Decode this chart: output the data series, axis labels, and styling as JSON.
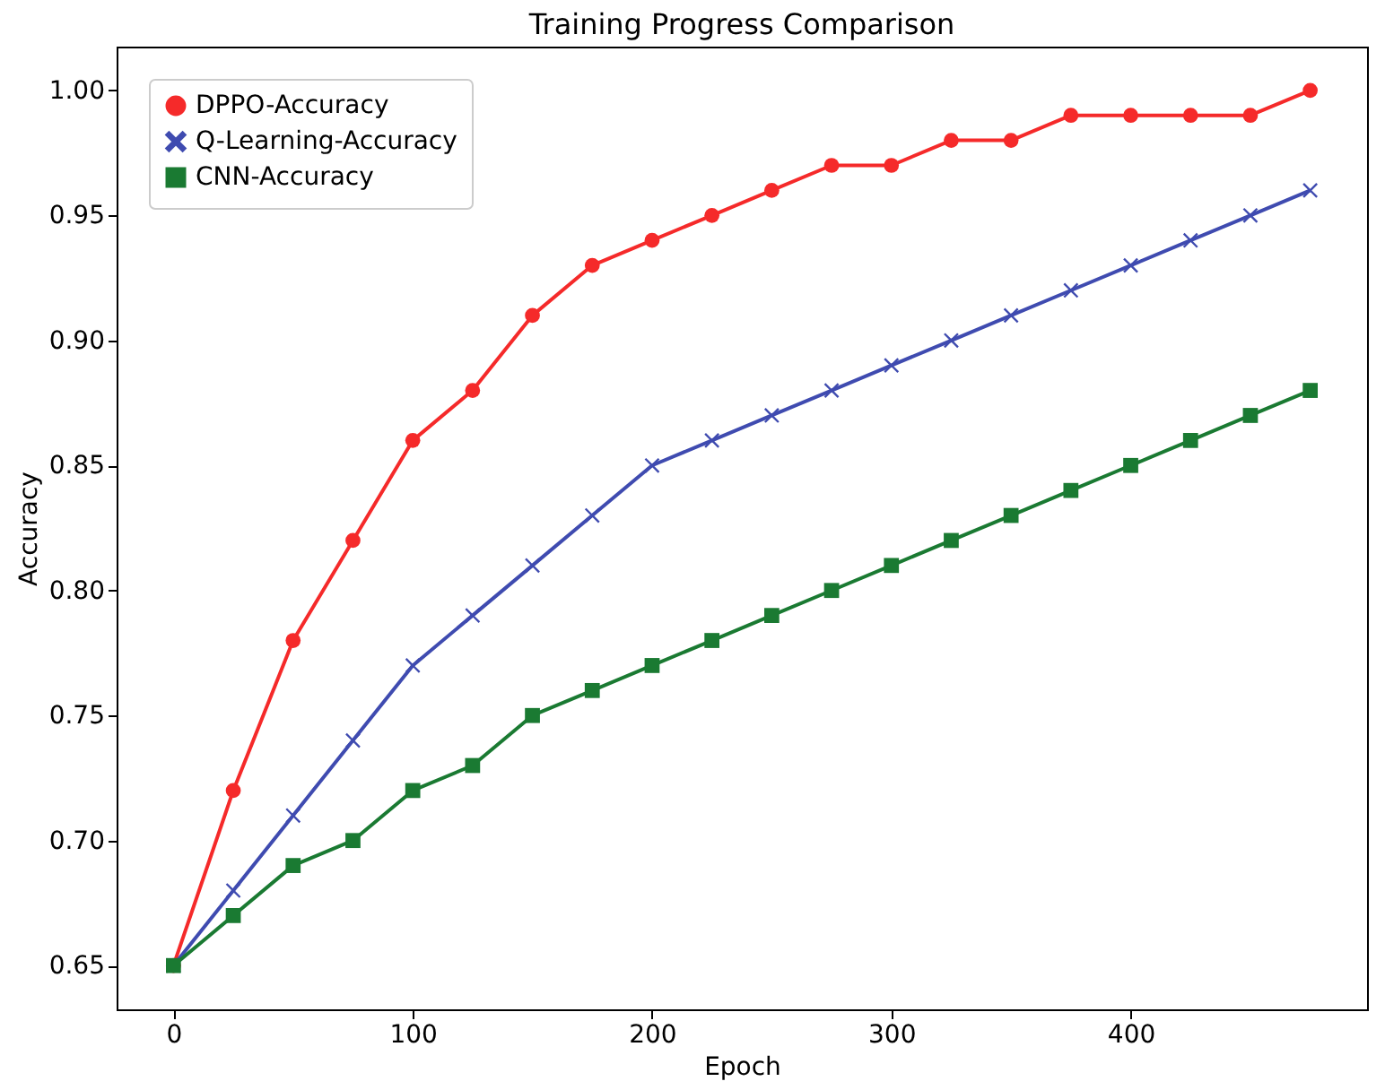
{
  "chart_data": {
    "type": "line",
    "title": "Training Progress Comparison",
    "xlabel": "Epoch",
    "ylabel": "Accuracy",
    "x": [
      0,
      25,
      50,
      75,
      100,
      125,
      150,
      175,
      200,
      225,
      250,
      275,
      300,
      325,
      350,
      375,
      400,
      425,
      450,
      475
    ],
    "series": [
      {
        "name": "DPPO-Accuracy",
        "color": "#f52a2a",
        "marker": "circle",
        "values": [
          0.65,
          0.72,
          0.78,
          0.82,
          0.86,
          0.88,
          0.91,
          0.93,
          0.94,
          0.95,
          0.96,
          0.97,
          0.97,
          0.98,
          0.98,
          0.99,
          0.99,
          0.99,
          0.99,
          1.0
        ]
      },
      {
        "name": "Q-Learning-Accuracy",
        "color": "#3f4bb0",
        "marker": "cross",
        "values": [
          0.65,
          0.68,
          0.71,
          0.74,
          0.77,
          0.79,
          0.81,
          0.83,
          0.85,
          0.86,
          0.87,
          0.88,
          0.89,
          0.9,
          0.91,
          0.92,
          0.93,
          0.94,
          0.95,
          0.96
        ]
      },
      {
        "name": "CNN-Accuracy",
        "color": "#1a7a32",
        "marker": "square",
        "values": [
          0.65,
          0.67,
          0.69,
          0.7,
          0.72,
          0.73,
          0.75,
          0.76,
          0.77,
          0.78,
          0.79,
          0.8,
          0.81,
          0.82,
          0.83,
          0.84,
          0.85,
          0.86,
          0.87,
          0.88
        ]
      }
    ],
    "xlim": [
      -23.75,
      498.75
    ],
    "ylim": [
      0.6325,
      1.0175
    ],
    "xticks": [
      0,
      100,
      200,
      300,
      400
    ],
    "yticks": [
      0.65,
      {
        "value": 0.7,
        "label": "0.70"
      },
      0.75,
      {
        "value": 0.8,
        "label": "0.80"
      },
      0.85,
      {
        "value": 0.9,
        "label": "0.90"
      },
      0.95,
      {
        "value": 1.0,
        "label": "1.00"
      }
    ],
    "grid": false,
    "legend": "top left"
  }
}
